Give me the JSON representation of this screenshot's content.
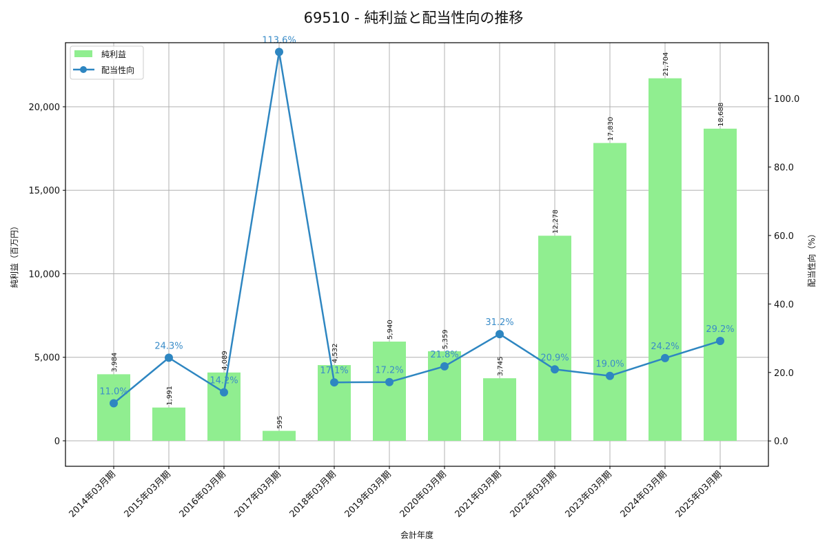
{
  "chart_data": {
    "type": "bar+line",
    "title": "69510 - 純利益と配当性向の推移",
    "xlabel": "会計年度",
    "ylabel_left": "純利益（百万円）",
    "ylabel_right": "配当性向（%）",
    "categories": [
      "2014年03月期",
      "2015年03月期",
      "2016年03月期",
      "2017年03月期",
      "2018年03月期",
      "2019年03月期",
      "2020年03月期",
      "2021年03月期",
      "2022年03月期",
      "2023年03月期",
      "2024年03月期",
      "2025年03月期"
    ],
    "series": [
      {
        "name": "純利益",
        "type": "bar",
        "axis": "left",
        "color": "#90ee90",
        "values": [
          3984,
          1991,
          4089,
          595,
          4532,
          5940,
          5359,
          3745,
          12278,
          17830,
          21704,
          18688
        ],
        "labels": [
          "3,984",
          "1,991",
          "4,089",
          "595",
          "4,532",
          "5,940",
          "5,359",
          "3,745",
          "12,278",
          "17,830",
          "21,704",
          "18,688"
        ]
      },
      {
        "name": "配当性向",
        "type": "line",
        "axis": "right",
        "color": "#2e86c1",
        "values": [
          11.0,
          24.3,
          14.2,
          113.6,
          17.1,
          17.2,
          21.8,
          31.2,
          20.9,
          19.0,
          24.2,
          29.2
        ],
        "labels": [
          "11.0%",
          "24.3%",
          "14.2%",
          "113.6%",
          "17.1%",
          "17.2%",
          "21.8%",
          "31.2%",
          "20.9%",
          "19.0%",
          "24.2%",
          "29.2%"
        ]
      }
    ],
    "ylim_left": [
      -1526,
      23835
    ],
    "ylim_right": [
      -7.4,
      116.3
    ],
    "yticks_left": [
      0,
      5000,
      10000,
      15000,
      20000
    ],
    "yticks_left_labels": [
      "0",
      "5,000",
      "10,000",
      "15,000",
      "20,000"
    ],
    "yticks_right": [
      0,
      20,
      40,
      60,
      80,
      100
    ],
    "yticks_right_labels": [
      "0.0",
      "20.0",
      "40.0",
      "60.0",
      "80.0",
      "100.0"
    ],
    "grid": true,
    "legend_position": "upper left",
    "legend": [
      "純利益",
      "配当性向"
    ]
  }
}
